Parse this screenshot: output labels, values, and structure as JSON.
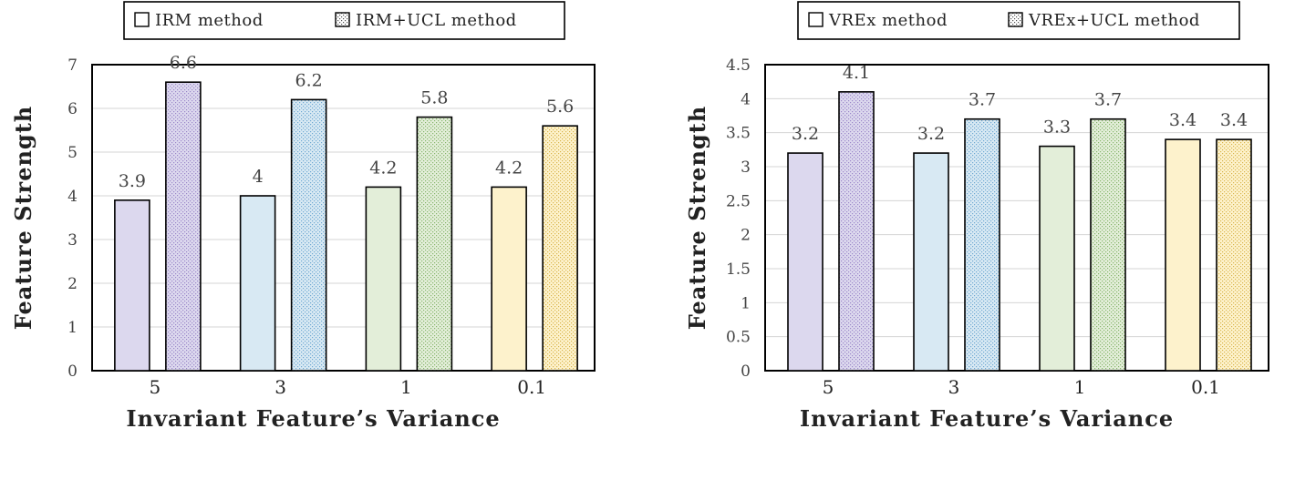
{
  "chart_data": [
    {
      "type": "bar",
      "xlabel": "Invariant Feature’s Variance",
      "ylabel": "Feature Strength",
      "categories": [
        "5",
        "3",
        "1",
        "0.1"
      ],
      "ylim": [
        0,
        7
      ],
      "yticks": [
        "0",
        "1",
        "2",
        "3",
        "4",
        "5",
        "6",
        "7"
      ],
      "grid": true,
      "legend_position": "top",
      "series": [
        {
          "name": "IRM method",
          "values": [
            3.9,
            4,
            4.2,
            4.2
          ],
          "labels": [
            "3.9",
            "4",
            "4.2",
            "4.2"
          ],
          "pattern": "solid"
        },
        {
          "name": "IRM+UCL method",
          "values": [
            6.6,
            6.2,
            5.8,
            5.6
          ],
          "labels": [
            "6.6",
            "6.2",
            "5.8",
            "5.6"
          ],
          "pattern": "dotted"
        }
      ],
      "category_colors": [
        "#dcd8ee",
        "#d8e9f3",
        "#e3eed9",
        "#fdf2cc"
      ],
      "dot_colors": [
        "#9b87c9",
        "#6fa8d2",
        "#86b56b",
        "#d8b44c"
      ]
    },
    {
      "type": "bar",
      "xlabel": "Invariant Feature’s Variance",
      "ylabel": "Feature Strength",
      "categories": [
        "5",
        "3",
        "1",
        "0.1"
      ],
      "ylim": [
        0,
        4.5
      ],
      "yticks": [
        "0",
        "0.5",
        "1",
        "1.5",
        "2",
        "2.5",
        "3",
        "3.5",
        "4",
        "4.5"
      ],
      "grid": true,
      "legend_position": "top",
      "series": [
        {
          "name": "VREx method",
          "values": [
            3.2,
            3.2,
            3.3,
            3.4
          ],
          "labels": [
            "3.2",
            "3.2",
            "3.3",
            "3.4"
          ],
          "pattern": "solid"
        },
        {
          "name": "VREx+UCL method",
          "values": [
            4.1,
            3.7,
            3.7,
            3.4
          ],
          "labels": [
            "4.1",
            "3.7",
            "3.7",
            "3.4"
          ],
          "pattern": "dotted"
        }
      ],
      "category_colors": [
        "#dcd8ee",
        "#d8e9f3",
        "#e3eed9",
        "#fdf2cc"
      ],
      "dot_colors": [
        "#9b87c9",
        "#6fa8d2",
        "#86b56b",
        "#d8b44c"
      ]
    }
  ]
}
